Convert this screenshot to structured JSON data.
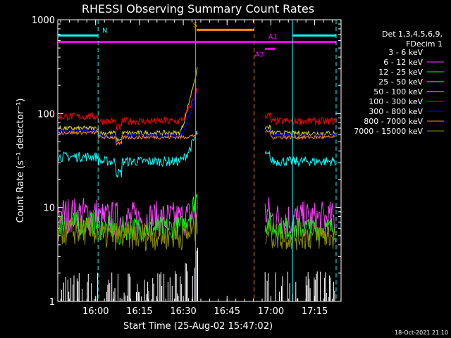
{
  "chart_data": {
    "type": "line",
    "title": "RHESSI Observing Summary Count Rates",
    "xlabel": "Start Time (25-Aug-02 15:47:02)",
    "ylabel": "Count Rate (s⁻¹ detector⁻¹)",
    "yscale": "log",
    "ylim": [
      1,
      1000
    ],
    "xlim_minutes_after_start": [
      0,
      97
    ],
    "y_ticks": [
      "1",
      "10",
      "100",
      "1000"
    ],
    "x_ticks": [
      {
        "label": "16:00",
        "t": 12.97
      },
      {
        "label": "16:15",
        "t": 27.97
      },
      {
        "label": "16:30",
        "t": 42.97
      },
      {
        "label": "16:45",
        "t": 57.97
      },
      {
        "label": "17:00",
        "t": 72.97
      },
      {
        "label": "17:15",
        "t": 87.97
      }
    ],
    "legend_header": [
      "Det 1,3,4,5,6,9,",
      "FDecim 1"
    ],
    "series": [
      {
        "name": "3 - 6 keV",
        "color": "#000000",
        "base": 1.0,
        "noise": 0.5,
        "rise": 3.0,
        "mode": "spiky"
      },
      {
        "name": "6 - 12 keV",
        "color": "#ff40ff",
        "base": 7.5,
        "noise": 0.15,
        "rise": 9.0,
        "mode": "magenta"
      },
      {
        "name": "12 - 25 keV",
        "color": "#00ff00",
        "base": 6.0,
        "noise": 0.1,
        "rise": 14.0,
        "mode": "normal"
      },
      {
        "name": "25 - 50 keV",
        "color": "#00ffff",
        "base": 31.0,
        "noise": 0.04,
        "rise": 65.0,
        "mode": "normal"
      },
      {
        "name": "50 - 100 keV",
        "color": "#dddd00",
        "base": 62.0,
        "noise": 0.02,
        "rise": 310.0,
        "mode": "normal"
      },
      {
        "name": "100 - 300 keV",
        "color": "#ff0000",
        "base": 83.0,
        "noise": 0.03,
        "rise": 190.0,
        "mode": "normal"
      },
      {
        "name": "300 - 800 keV",
        "color": "#0000ff",
        "base": 58.0,
        "noise": 0.02,
        "rise": 180.0,
        "mode": "normal"
      },
      {
        "name": "800 - 7000 keV",
        "color": "#ff8c00",
        "base": 56.0,
        "noise": 0.015,
        "rise": 60.0,
        "mode": "normal"
      },
      {
        "name": "7000 - 15000 keV",
        "color": "#8a8a00",
        "base": 5.0,
        "noise": 0.12,
        "rise": 6.0,
        "mode": "olive"
      }
    ],
    "data_gap_minutes": [
      48,
      71
    ],
    "annotations": [
      {
        "label": "N",
        "color": "#00ffff",
        "y": 680,
        "t0": 0,
        "t1": 13.8
      },
      {
        "label": "",
        "color": "#00ffff",
        "y": 680,
        "t0": 80.4,
        "t1": 95.3
      },
      {
        "label": "S",
        "color": "#ff8c00",
        "y": 780,
        "t0": 47.5,
        "t1": 67.2
      },
      {
        "label": "",
        "color": "#ff00ff",
        "y": 580,
        "t0": 0,
        "t1": 95.3
      },
      {
        "label": "A1",
        "color": "#ff00ff",
        "y": 580,
        "t0": 70.9,
        "t1": 76.2
      },
      {
        "label": "A3",
        "color": "#ff00ff",
        "y": 490,
        "t0": 70.9,
        "t1": 74.4
      }
    ],
    "vertical_lines": [
      {
        "t": 13.8,
        "color": "#00ffff",
        "dashed": true
      },
      {
        "t": 47.2,
        "color": "#ff8c00",
        "dashed": false
      },
      {
        "t": 67.2,
        "color": "#ff8c00",
        "dashed": true
      },
      {
        "t": 80.4,
        "color": "#00ffff",
        "dashed": false
      },
      {
        "t": 95.3,
        "color": "#00ffff",
        "dashed": true
      }
    ],
    "footer": "18-Oct-2021 21:10"
  }
}
